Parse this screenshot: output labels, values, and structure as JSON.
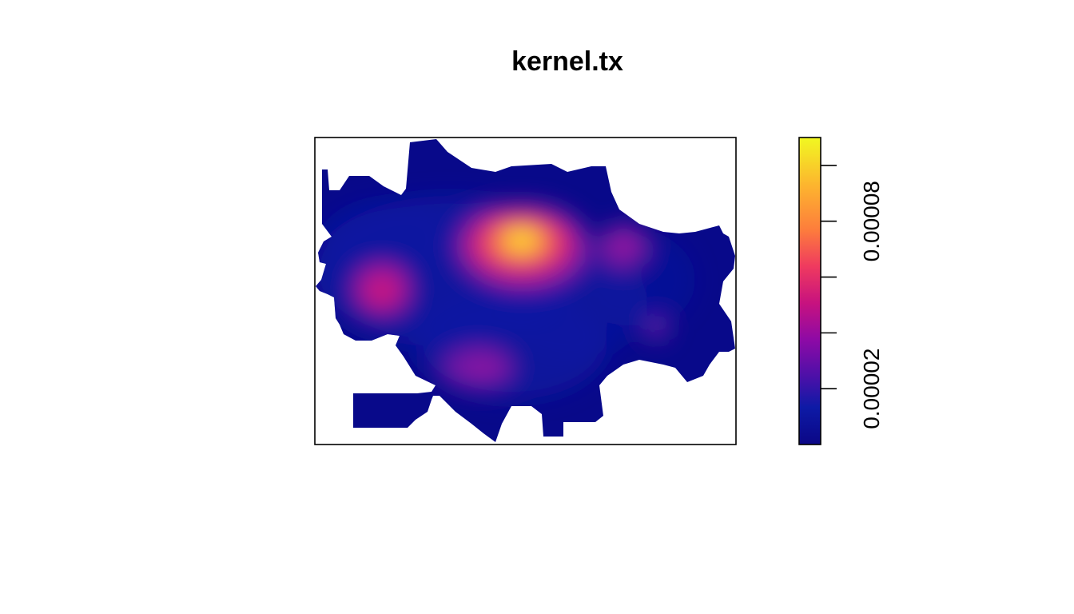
{
  "chart_data": {
    "type": "heatmap",
    "title": "kernel.tx",
    "xlabel": "",
    "ylabel": "",
    "axes_shown": false,
    "color_scale": {
      "palette": [
        "#0c0786",
        "#0d1aa6",
        "#4b10a8",
        "#8d0aa6",
        "#c7127f",
        "#ef3a5f",
        "#fd7d3c",
        "#fdb32f",
        "#f1f821"
      ],
      "range": [
        0,
        0.00011
      ],
      "ticks": [
        2e-05,
        4e-05,
        6e-05,
        8e-05,
        0.0001
      ],
      "tick_labels": [
        "0.00002",
        "",
        "",
        "0.00008",
        ""
      ]
    },
    "hotspots": [
      {
        "x": 0.49,
        "y": 0.68,
        "peak": 0.000105
      },
      {
        "x": 0.16,
        "y": 0.5,
        "peak": 4e-05
      },
      {
        "x": 0.73,
        "y": 0.64,
        "peak": 3.5e-05
      },
      {
        "x": 0.39,
        "y": 0.25,
        "peak": 3e-05
      },
      {
        "x": 0.81,
        "y": 0.38,
        "peak": 2.5e-05
      }
    ]
  }
}
